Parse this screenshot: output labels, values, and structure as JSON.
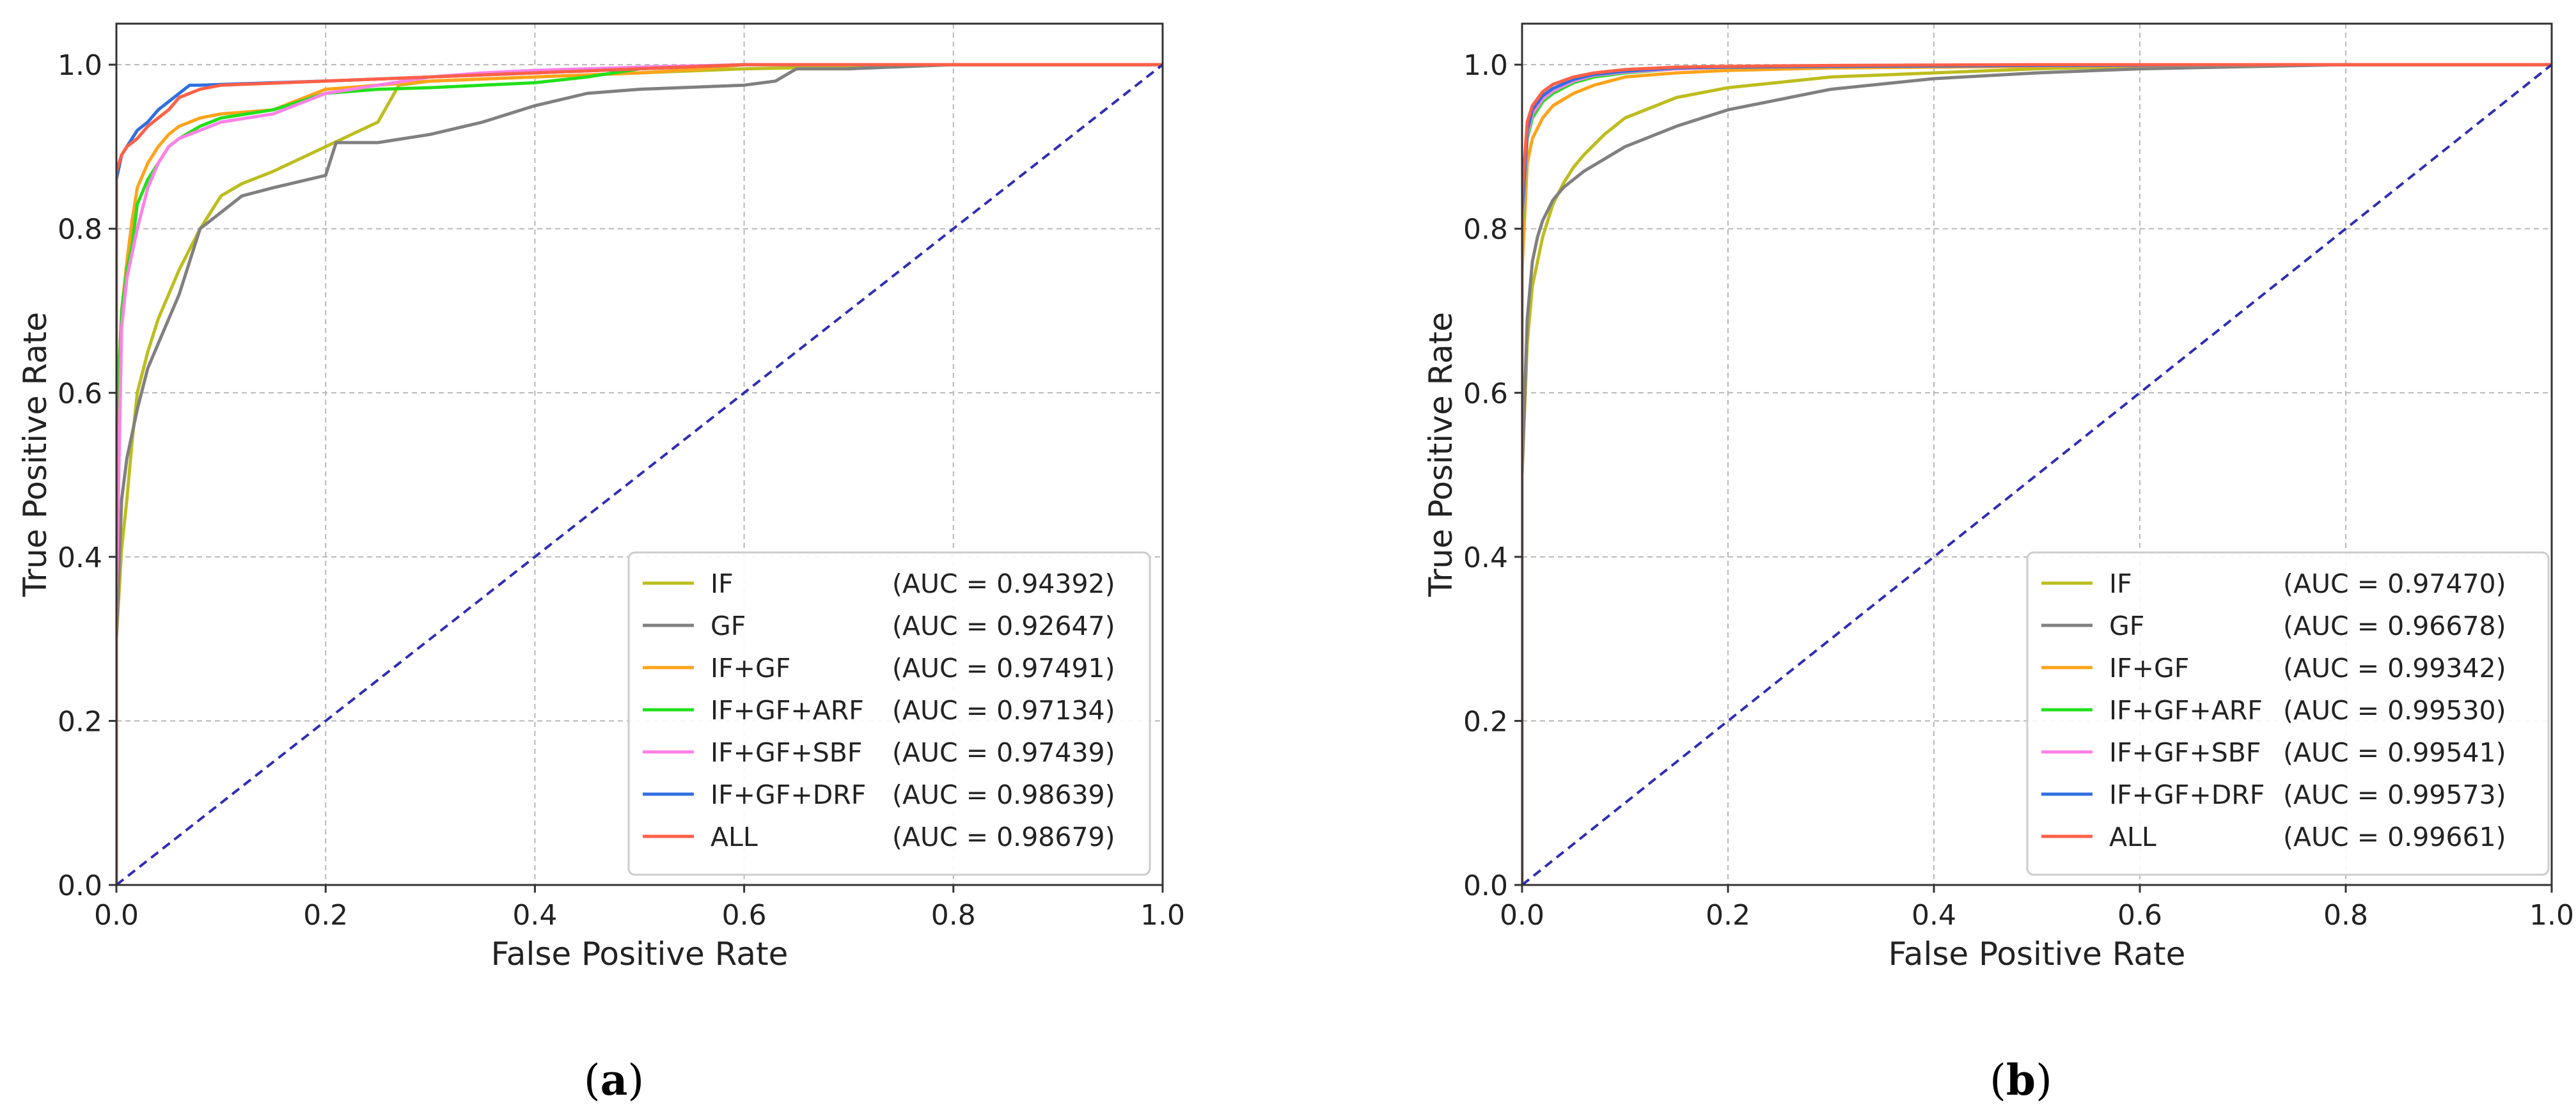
{
  "colors": {
    "IF": "#bdbd1e",
    "GF": "#808080",
    "IF+GF": "#ffa31a",
    "IF+GF+ARF": "#22e01b",
    "IF+GF+SBF": "#ff80e8",
    "IF+GF+DRF": "#2f6fe0",
    "ALL": "#ff6047",
    "diagonal": "#2e2eb3",
    "grid": "#b8b8b8"
  },
  "captions": [
    {
      "open": "(",
      "letter": "a",
      "close": ")"
    },
    {
      "open": "(",
      "letter": "b",
      "close": ")"
    }
  ],
  "chart_data": [
    {
      "type": "line",
      "panel": "a",
      "xlabel": "False Positive Rate",
      "ylabel": "True Positive Rate",
      "xlim": [
        0.0,
        1.0
      ],
      "ylim": [
        0.0,
        1.05
      ],
      "xticks": [
        "0.0",
        "0.2",
        "0.4",
        "0.6",
        "0.8",
        "1.0"
      ],
      "yticks": [
        "0.0",
        "0.2",
        "0.4",
        "0.6",
        "0.8",
        "1.0"
      ],
      "grid": true,
      "legend_position": "bottom-right",
      "diagonal": true,
      "series": [
        {
          "name": "IF",
          "auc": "(AUC = 0.94392)",
          "x": [
            0.0,
            0.0,
            0.005,
            0.01,
            0.015,
            0.02,
            0.03,
            0.04,
            0.05,
            0.06,
            0.08,
            0.1,
            0.12,
            0.15,
            0.2,
            0.25,
            0.27,
            0.3,
            0.4,
            0.5,
            0.6,
            0.8,
            1.0
          ],
          "y": [
            0.0,
            0.3,
            0.41,
            0.47,
            0.54,
            0.6,
            0.65,
            0.69,
            0.72,
            0.75,
            0.8,
            0.84,
            0.855,
            0.87,
            0.9,
            0.93,
            0.975,
            0.98,
            0.985,
            0.99,
            0.995,
            1.0,
            1.0
          ]
        },
        {
          "name": "GF",
          "auc": "(AUC = 0.92647)",
          "x": [
            0.0,
            0.0,
            0.005,
            0.01,
            0.02,
            0.03,
            0.05,
            0.06,
            0.07,
            0.08,
            0.1,
            0.12,
            0.15,
            0.2,
            0.21,
            0.25,
            0.3,
            0.35,
            0.4,
            0.45,
            0.5,
            0.6,
            0.63,
            0.65,
            0.7,
            0.8,
            0.9,
            1.0
          ],
          "y": [
            0.0,
            0.3,
            0.47,
            0.52,
            0.58,
            0.63,
            0.69,
            0.72,
            0.76,
            0.8,
            0.82,
            0.84,
            0.85,
            0.865,
            0.905,
            0.905,
            0.915,
            0.93,
            0.95,
            0.965,
            0.97,
            0.975,
            0.98,
            0.995,
            0.995,
            1.0,
            1.0,
            1.0
          ]
        },
        {
          "name": "IF+GF",
          "auc": "(AUC = 0.97491)",
          "x": [
            0.0,
            0.0,
            0.005,
            0.01,
            0.015,
            0.02,
            0.03,
            0.04,
            0.05,
            0.06,
            0.08,
            0.1,
            0.15,
            0.18,
            0.2,
            0.25,
            0.3,
            0.4,
            0.5,
            0.56,
            0.6,
            0.8,
            1.0
          ],
          "y": [
            0.0,
            0.55,
            0.7,
            0.76,
            0.81,
            0.85,
            0.88,
            0.9,
            0.915,
            0.925,
            0.935,
            0.94,
            0.945,
            0.96,
            0.97,
            0.975,
            0.98,
            0.985,
            0.99,
            0.995,
            1.0,
            1.0,
            1.0
          ]
        },
        {
          "name": "IF+GF+ARF",
          "auc": "(AUC = 0.97134)",
          "x": [
            0.0,
            0.0,
            0.005,
            0.01,
            0.015,
            0.02,
            0.03,
            0.04,
            0.05,
            0.06,
            0.08,
            0.1,
            0.15,
            0.2,
            0.25,
            0.3,
            0.35,
            0.4,
            0.45,
            0.5,
            0.6,
            0.8,
            1.0
          ],
          "y": [
            0.0,
            0.55,
            0.7,
            0.75,
            0.78,
            0.83,
            0.86,
            0.88,
            0.9,
            0.91,
            0.925,
            0.935,
            0.945,
            0.965,
            0.97,
            0.972,
            0.975,
            0.978,
            0.985,
            0.995,
            1.0,
            1.0,
            1.0
          ]
        },
        {
          "name": "IF+GF+SBF",
          "auc": "(AUC = 0.97439)",
          "x": [
            0.0,
            0.0,
            0.005,
            0.01,
            0.02,
            0.03,
            0.04,
            0.05,
            0.06,
            0.08,
            0.1,
            0.15,
            0.18,
            0.2,
            0.25,
            0.3,
            0.35,
            0.4,
            0.5,
            0.6,
            0.8,
            1.0
          ],
          "y": [
            0.0,
            0.35,
            0.68,
            0.74,
            0.8,
            0.85,
            0.88,
            0.9,
            0.91,
            0.92,
            0.93,
            0.94,
            0.955,
            0.965,
            0.975,
            0.985,
            0.99,
            0.993,
            0.997,
            1.0,
            1.0,
            1.0
          ]
        },
        {
          "name": "IF+GF+DRF",
          "auc": "(AUC = 0.98639)",
          "x": [
            0.0,
            0.0,
            0.005,
            0.01,
            0.02,
            0.03,
            0.04,
            0.05,
            0.06,
            0.07,
            0.08,
            0.15,
            0.2,
            0.3,
            0.4,
            0.5,
            0.6,
            0.8,
            1.0
          ],
          "y": [
            0.0,
            0.86,
            0.89,
            0.9,
            0.92,
            0.93,
            0.945,
            0.955,
            0.965,
            0.975,
            0.975,
            0.978,
            0.98,
            0.985,
            0.99,
            0.995,
            1.0,
            1.0,
            1.0
          ]
        },
        {
          "name": "ALL",
          "auc": "(AUC = 0.98679)",
          "x": [
            0.0,
            0.0,
            0.005,
            0.01,
            0.02,
            0.03,
            0.04,
            0.05,
            0.06,
            0.08,
            0.1,
            0.2,
            0.3,
            0.4,
            0.5,
            0.6,
            0.8,
            1.0
          ],
          "y": [
            0.0,
            0.87,
            0.89,
            0.9,
            0.91,
            0.925,
            0.935,
            0.945,
            0.96,
            0.97,
            0.975,
            0.98,
            0.985,
            0.99,
            0.995,
            1.0,
            1.0,
            1.0
          ]
        },
        {
          "name": "diagonal",
          "x": [
            0.0,
            1.0
          ],
          "y": [
            0.0,
            1.0
          ]
        }
      ]
    },
    {
      "type": "line",
      "panel": "b",
      "xlabel": "False Positive Rate",
      "ylabel": "True Positive Rate",
      "xlim": [
        0.0,
        1.0
      ],
      "ylim": [
        0.0,
        1.05
      ],
      "xticks": [
        "0.0",
        "0.2",
        "0.4",
        "0.6",
        "0.8",
        "1.0"
      ],
      "yticks": [
        "0.0",
        "0.2",
        "0.4",
        "0.6",
        "0.8",
        "1.0"
      ],
      "grid": true,
      "legend_position": "bottom-right",
      "diagonal": true,
      "series": [
        {
          "name": "IF",
          "auc": "(AUC = 0.97470)",
          "x": [
            0.0,
            0.0,
            0.005,
            0.01,
            0.015,
            0.02,
            0.03,
            0.04,
            0.05,
            0.06,
            0.08,
            0.1,
            0.15,
            0.2,
            0.3,
            0.4,
            0.5,
            0.6,
            0.8,
            1.0
          ],
          "y": [
            0.0,
            0.5,
            0.66,
            0.73,
            0.76,
            0.79,
            0.83,
            0.855,
            0.875,
            0.89,
            0.915,
            0.935,
            0.96,
            0.972,
            0.985,
            0.99,
            0.995,
            0.998,
            1.0,
            1.0
          ]
        },
        {
          "name": "GF",
          "auc": "(AUC = 0.96678)",
          "x": [
            0.0,
            0.0,
            0.005,
            0.01,
            0.015,
            0.02,
            0.03,
            0.04,
            0.05,
            0.06,
            0.08,
            0.1,
            0.15,
            0.2,
            0.3,
            0.4,
            0.5,
            0.6,
            0.8,
            1.0
          ],
          "y": [
            0.0,
            0.5,
            0.69,
            0.76,
            0.79,
            0.81,
            0.835,
            0.85,
            0.86,
            0.87,
            0.885,
            0.9,
            0.925,
            0.945,
            0.97,
            0.983,
            0.99,
            0.995,
            1.0,
            1.0
          ]
        },
        {
          "name": "IF+GF",
          "auc": "(AUC = 0.99342)",
          "x": [
            0.0,
            0.0,
            0.005,
            0.01,
            0.02,
            0.03,
            0.05,
            0.07,
            0.1,
            0.15,
            0.2,
            0.3,
            0.5,
            0.8,
            1.0
          ],
          "y": [
            0.0,
            0.75,
            0.88,
            0.91,
            0.935,
            0.95,
            0.965,
            0.975,
            0.985,
            0.99,
            0.993,
            0.996,
            0.998,
            1.0,
            1.0
          ]
        },
        {
          "name": "IF+GF+ARF",
          "auc": "(AUC = 0.99530)",
          "x": [
            0.0,
            0.0,
            0.005,
            0.01,
            0.02,
            0.03,
            0.05,
            0.07,
            0.1,
            0.15,
            0.2,
            0.3,
            0.5,
            0.8,
            1.0
          ],
          "y": [
            0.0,
            0.8,
            0.91,
            0.935,
            0.955,
            0.965,
            0.978,
            0.985,
            0.99,
            0.995,
            0.997,
            0.998,
            0.999,
            1.0,
            1.0
          ]
        },
        {
          "name": "IF+GF+SBF",
          "auc": "(AUC = 0.99541)",
          "x": [
            0.0,
            0.0,
            0.005,
            0.01,
            0.02,
            0.03,
            0.05,
            0.07,
            0.1,
            0.15,
            0.2,
            0.3,
            0.5,
            0.8,
            1.0
          ],
          "y": [
            0.0,
            0.81,
            0.915,
            0.94,
            0.958,
            0.968,
            0.98,
            0.987,
            0.991,
            0.995,
            0.997,
            0.998,
            0.999,
            1.0,
            1.0
          ]
        },
        {
          "name": "IF+GF+DRF",
          "auc": "(AUC = 0.99573)",
          "x": [
            0.0,
            0.0,
            0.005,
            0.01,
            0.02,
            0.03,
            0.05,
            0.07,
            0.1,
            0.15,
            0.2,
            0.3,
            0.5,
            0.8,
            1.0
          ],
          "y": [
            0.0,
            0.82,
            0.92,
            0.945,
            0.962,
            0.971,
            0.982,
            0.988,
            0.992,
            0.996,
            0.997,
            0.998,
            0.999,
            1.0,
            1.0
          ]
        },
        {
          "name": "ALL",
          "auc": "(AUC = 0.99661)",
          "x": [
            0.0,
            0.0,
            0.005,
            0.01,
            0.02,
            0.03,
            0.05,
            0.07,
            0.1,
            0.15,
            0.2,
            0.3,
            0.5,
            0.8,
            1.0
          ],
          "y": [
            0.0,
            0.84,
            0.93,
            0.95,
            0.967,
            0.976,
            0.985,
            0.99,
            0.994,
            0.997,
            0.998,
            0.999,
            1.0,
            1.0,
            1.0
          ]
        },
        {
          "name": "diagonal",
          "x": [
            0.0,
            1.0
          ],
          "y": [
            0.0,
            1.0
          ]
        }
      ]
    }
  ]
}
